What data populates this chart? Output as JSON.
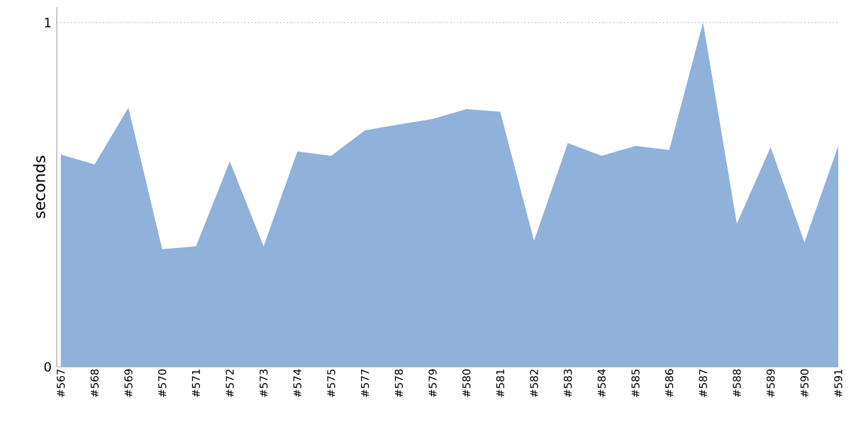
{
  "chart_data": {
    "type": "area",
    "ylabel": "seconds",
    "categories": [
      "#567",
      "#568",
      "#569",
      "#570",
      "#571",
      "#572",
      "#573",
      "#574",
      "#575",
      "#577",
      "#578",
      "#579",
      "#580",
      "#581",
      "#582",
      "#583",
      "#584",
      "#585",
      "#586",
      "#587",
      "#588",
      "#589",
      "#590",
      "#591"
    ],
    "values": [
      0.617,
      0.588,
      0.753,
      0.342,
      0.35,
      0.597,
      0.35,
      0.626,
      0.613,
      0.687,
      0.704,
      0.72,
      0.749,
      0.741,
      0.366,
      0.65,
      0.613,
      0.642,
      0.63,
      1.0,
      0.416,
      0.638,
      0.362,
      0.642
    ],
    "color": "#8fb1da",
    "ylim": [
      0,
      1.045
    ],
    "yticks": [
      0,
      1
    ],
    "grid": false,
    "ref_lines": [
      {
        "axis": "y",
        "value": 1,
        "color": "#777777",
        "line_style": "dotted"
      }
    ]
  }
}
